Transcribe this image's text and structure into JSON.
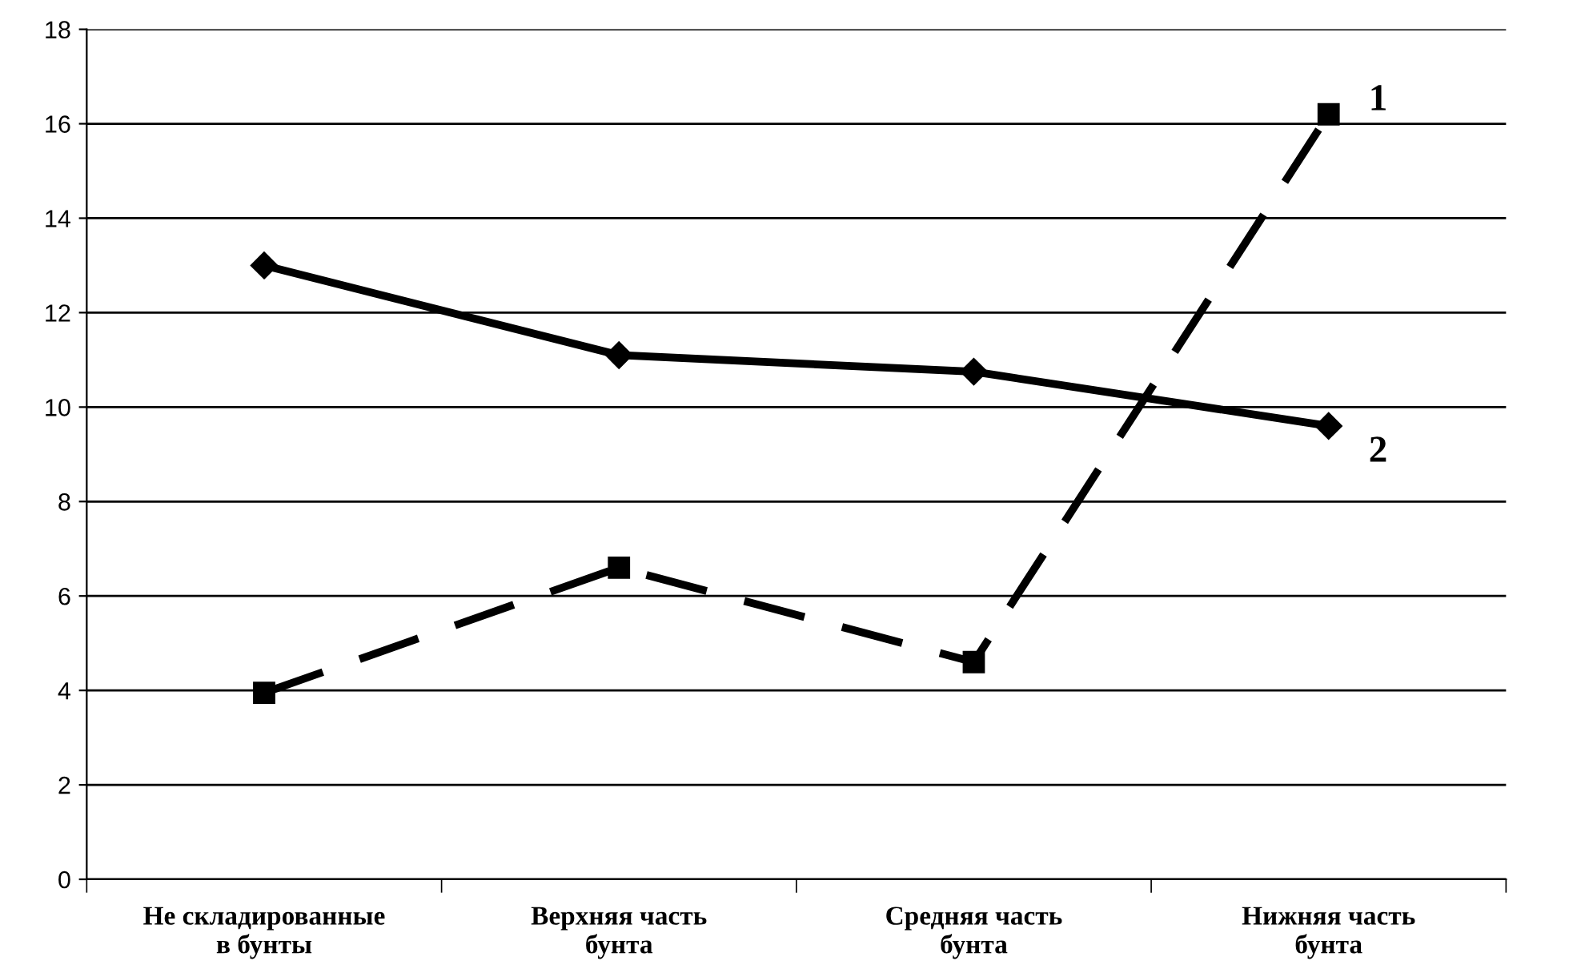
{
  "chart_data": {
    "type": "line",
    "categories": [
      "Не складированные\nв бунты",
      "Верхняя часть\nбунта",
      "Средняя часть\nбунта",
      "Нижняя часть\nбунта"
    ],
    "series": [
      {
        "name": "1",
        "color": "#000000",
        "marker": "square",
        "line_style": "dashed",
        "values": [
          3.95,
          6.6,
          4.6,
          16.2
        ]
      },
      {
        "name": "2",
        "color": "#000000",
        "marker": "diamond",
        "line_style": "solid",
        "values": [
          13.0,
          11.1,
          10.75,
          9.6
        ]
      }
    ],
    "ylim": [
      0,
      18
    ],
    "yticks": [
      0,
      2,
      4,
      6,
      8,
      10,
      12,
      14,
      16,
      18
    ],
    "grid": "y",
    "legend": false
  }
}
